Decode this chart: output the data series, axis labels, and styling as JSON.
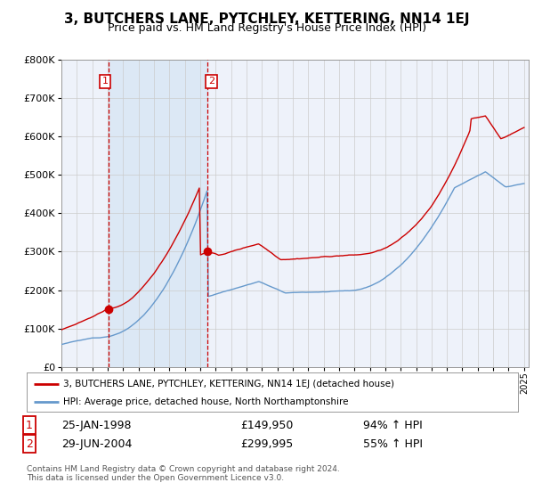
{
  "title": "3, BUTCHERS LANE, PYTCHLEY, KETTERING, NN14 1EJ",
  "subtitle": "Price paid vs. HM Land Registry's House Price Index (HPI)",
  "legend_line1": "3, BUTCHERS LANE, PYTCHLEY, KETTERING, NN14 1EJ (detached house)",
  "legend_line2": "HPI: Average price, detached house, North Northamptonshire",
  "transaction1_date": "25-JAN-1998",
  "transaction1_price": "£149,950",
  "transaction1_hpi": "94% ↑ HPI",
  "transaction2_date": "29-JUN-2004",
  "transaction2_price": "£299,995",
  "transaction2_hpi": "55% ↑ HPI",
  "footnote": "Contains HM Land Registry data © Crown copyright and database right 2024.\nThis data is licensed under the Open Government Licence v3.0.",
  "red_color": "#cc0000",
  "blue_color": "#6699cc",
  "shade_color": "#dce8f5",
  "grid_color": "#cccccc",
  "background_color": "#ffffff",
  "plot_bg_color": "#eef2fa",
  "marker1_x": 1998.07,
  "marker1_y": 149950,
  "marker2_x": 2004.49,
  "marker2_y": 299995,
  "ylim": [
    0,
    800000
  ],
  "xlim_start": 1995.0,
  "xlim_end": 2025.3
}
